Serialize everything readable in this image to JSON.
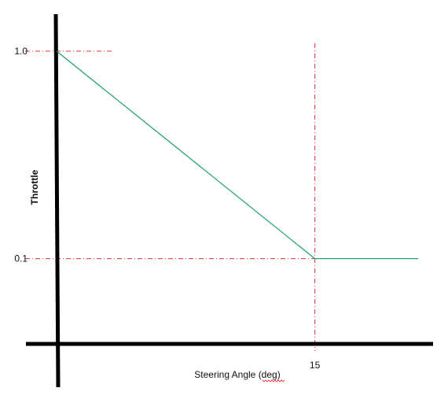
{
  "chart_data": {
    "type": "line",
    "title": "",
    "xlabel": "Steering Angle (deg)",
    "ylabel": "Throttle",
    "xlim": [
      0,
      21
    ],
    "ylim": [
      -0.27,
      1.0
    ],
    "x_ticks": [
      {
        "value": 15,
        "label": "15"
      }
    ],
    "y_ticks": [
      {
        "value": 1.0,
        "label": "1.0"
      },
      {
        "value": 0.1,
        "label": "0.1"
      }
    ],
    "series": [
      {
        "points": [
          {
            "x": 0,
            "y": 1.0
          },
          {
            "x": 15,
            "y": 0.1
          },
          {
            "x": 21,
            "y": 0.1
          }
        ]
      }
    ],
    "guides": {
      "vertical": [
        {
          "x": 15
        }
      ],
      "horizontal": [
        {
          "y": 1.0
        },
        {
          "y": 0.1
        }
      ]
    },
    "grid": false,
    "legend": "none",
    "colors": {
      "axis": "#000000",
      "series": "#1f9e73",
      "guide": "#d9363e",
      "text": "#111111"
    }
  }
}
